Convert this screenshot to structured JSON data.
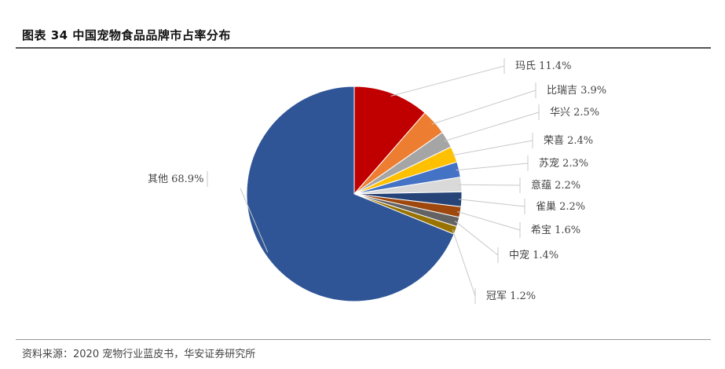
{
  "chart_data": {
    "type": "pie",
    "title": "图表 34 中国宠物食品品牌市占率分布",
    "unit": "%",
    "slices": [
      {
        "label": "玛氏",
        "value": 11.4,
        "color": "#c00000"
      },
      {
        "label": "比瑞吉",
        "value": 3.9,
        "color": "#ed7d31"
      },
      {
        "label": "华兴",
        "value": 2.5,
        "color": "#a5a5a5"
      },
      {
        "label": "荣喜",
        "value": 2.4,
        "color": "#ffc000"
      },
      {
        "label": "苏宠",
        "value": 2.3,
        "color": "#4472c4"
      },
      {
        "label": "意蕴",
        "value": 2.2,
        "color": "#d9d9d9"
      },
      {
        "label": "雀巢",
        "value": 2.2,
        "color": "#264478"
      },
      {
        "label": "希宝",
        "value": 1.6,
        "color": "#9e480e"
      },
      {
        "label": "中宠",
        "value": 1.4,
        "color": "#636363"
      },
      {
        "label": "冠军",
        "value": 1.2,
        "color": "#997300"
      },
      {
        "label": "其他",
        "value": 68.9,
        "color": "#2f5597"
      }
    ],
    "data_labels": [
      "玛氏 11.4%",
      "比瑞吉 3.9%",
      "华兴 2.5%",
      "荣喜 2.4%",
      "苏宠 2.3%",
      "意蕴 2.2%",
      "雀巢 2.2%",
      "希宝 1.6%",
      "中宠 1.4%",
      "冠军 1.2%",
      "其他 68.9%"
    ]
  },
  "source_note": "资料来源：2020 宠物行业蓝皮书，华安证券研究所"
}
